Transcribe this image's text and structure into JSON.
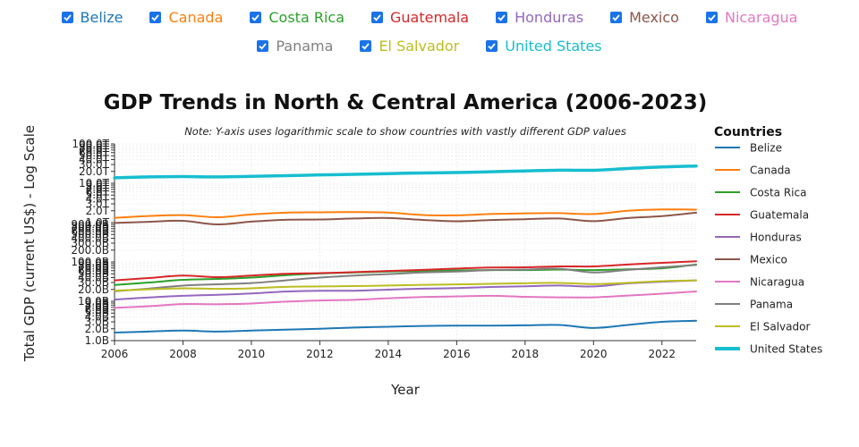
{
  "filters": [
    {
      "label": "Belize",
      "color": "#1f77b4",
      "checked": true
    },
    {
      "label": "Canada",
      "color": "#ff7f0e",
      "checked": true
    },
    {
      "label": "Costa Rica",
      "color": "#2ca02c",
      "checked": true
    },
    {
      "label": "Guatemala",
      "color": "#d62728",
      "checked": true
    },
    {
      "label": "Honduras",
      "color": "#9467bd",
      "checked": true
    },
    {
      "label": "Mexico",
      "color": "#8c564b",
      "checked": true
    },
    {
      "label": "Nicaragua",
      "color": "#e377c2",
      "checked": true
    },
    {
      "label": "Panama",
      "color": "#7f7f7f",
      "checked": true
    },
    {
      "label": "El Salvador",
      "color": "#bcbd22",
      "checked": true
    },
    {
      "label": "United States",
      "color": "#17becf",
      "checked": true
    }
  ],
  "chart_data": {
    "type": "line",
    "title": "GDP Trends in North & Central America (2006-2023)",
    "note": "Note: Y-axis uses logarithmic scale to show countries with vastly different GDP values",
    "xlabel": "Year",
    "ylabel": "Total GDP (current US$) - Log Scale",
    "y_scale": "log",
    "ylim": [
      "1.0B",
      "100.0T"
    ],
    "xlim": [
      2006,
      2023
    ],
    "x_ticks": [
      "2006",
      "2008",
      "2010",
      "2012",
      "2014",
      "2016",
      "2018",
      "2020",
      "2022"
    ],
    "y_ticks": [
      "1.0B",
      "2.0B",
      "3.0B",
      "4.0B",
      "5.0B",
      "6.0B",
      "7.0B",
      "8.0B",
      "9.0B",
      "10.0B",
      "20.0B",
      "30.0B",
      "40.0B",
      "50.0B",
      "60.0B",
      "70.0B",
      "80.0B",
      "90.0B",
      "100.0B",
      "200.0B",
      "300.0B",
      "400.0B",
      "500.0B",
      "600.0B",
      "700.0B",
      "800.0B",
      "900.0B",
      "1.0T",
      "2.0T",
      "3.0T",
      "4.0T",
      "5.0T",
      "6.0T",
      "7.0T",
      "8.0T",
      "9.0T",
      "10.0T",
      "20.0T",
      "30.0T",
      "40.0T",
      "50.0T",
      "60.0T",
      "70.0T",
      "80.0T",
      "90.0T",
      "100.0T"
    ],
    "grid": true,
    "legend_title": "Countries",
    "legend_position": "right",
    "x": [
      2006,
      2007,
      2008,
      2009,
      2010,
      2011,
      2012,
      2013,
      2014,
      2015,
      2016,
      2017,
      2018,
      2019,
      2020,
      2021,
      2022,
      2023
    ],
    "series": [
      {
        "name": "Belize",
        "color": "#1f77b4",
        "unit": "B",
        "values": [
          1.6,
          1.7,
          1.8,
          1.7,
          1.8,
          1.9,
          2.0,
          2.15,
          2.25,
          2.35,
          2.4,
          2.4,
          2.45,
          2.5,
          2.1,
          2.5,
          3.0,
          3.2
        ]
      },
      {
        "name": "Canada",
        "color": "#ff7f0e",
        "unit": "T",
        "values": [
          1.32,
          1.47,
          1.55,
          1.37,
          1.61,
          1.79,
          1.83,
          1.85,
          1.8,
          1.56,
          1.53,
          1.65,
          1.72,
          1.74,
          1.65,
          2.0,
          2.16,
          2.14
        ]
      },
      {
        "name": "Costa Rica",
        "color": "#2ca02c",
        "unit": "B",
        "values": [
          26,
          30,
          35,
          37,
          40,
          46,
          51,
          54,
          57,
          59,
          61,
          62,
          62,
          64,
          62,
          65,
          69,
          86
        ]
      },
      {
        "name": "Guatemala",
        "color": "#d62728",
        "unit": "B",
        "values": [
          34,
          39,
          45,
          41,
          45,
          50,
          52,
          55,
          59,
          63,
          68,
          72,
          73,
          77,
          77,
          86,
          95,
          104
        ]
      },
      {
        "name": "Honduras",
        "color": "#9467bd",
        "unit": "B",
        "values": [
          11,
          12.5,
          13.8,
          14.6,
          15.8,
          17.7,
          18.5,
          18.5,
          19.8,
          20.9,
          21.7,
          23.1,
          24.1,
          25.1,
          23.8,
          28.5,
          31.5,
          34
        ]
      },
      {
        "name": "Mexico",
        "color": "#8c564b",
        "unit": "T",
        "values": [
          0.98,
          1.05,
          1.11,
          0.9,
          1.06,
          1.18,
          1.2,
          1.27,
          1.31,
          1.17,
          1.08,
          1.16,
          1.22,
          1.27,
          1.09,
          1.31,
          1.46,
          1.79
        ]
      },
      {
        "name": "Nicaragua",
        "color": "#e377c2",
        "unit": "B",
        "values": [
          6.8,
          7.5,
          8.5,
          8.4,
          8.8,
          9.8,
          10.5,
          10.9,
          11.9,
          12.8,
          13.3,
          13.8,
          13.0,
          12.6,
          12.6,
          14.0,
          15.6,
          17.8
        ]
      },
      {
        "name": "Panama",
        "color": "#7f7f7f",
        "unit": "B",
        "values": [
          18,
          21,
          25,
          27,
          29,
          34,
          40,
          45,
          49,
          54,
          57,
          62,
          64,
          67,
          54,
          63,
          73,
          84
        ]
      },
      {
        "name": "El Salvador",
        "color": "#bcbd22",
        "unit": "B",
        "values": [
          18.6,
          20.1,
          21.4,
          20.7,
          21.4,
          23.3,
          23.8,
          24.4,
          25.1,
          26.1,
          26.8,
          27.7,
          28.7,
          29.3,
          27.3,
          29.4,
          32.5,
          34.0
        ]
      },
      {
        "name": "United States",
        "color": "#17becf",
        "unit": "T",
        "values": [
          13.8,
          14.5,
          14.8,
          14.5,
          15.0,
          15.6,
          16.3,
          16.9,
          17.6,
          18.3,
          18.8,
          19.6,
          20.6,
          21.5,
          21.4,
          23.7,
          26.0,
          27.4
        ]
      }
    ]
  }
}
